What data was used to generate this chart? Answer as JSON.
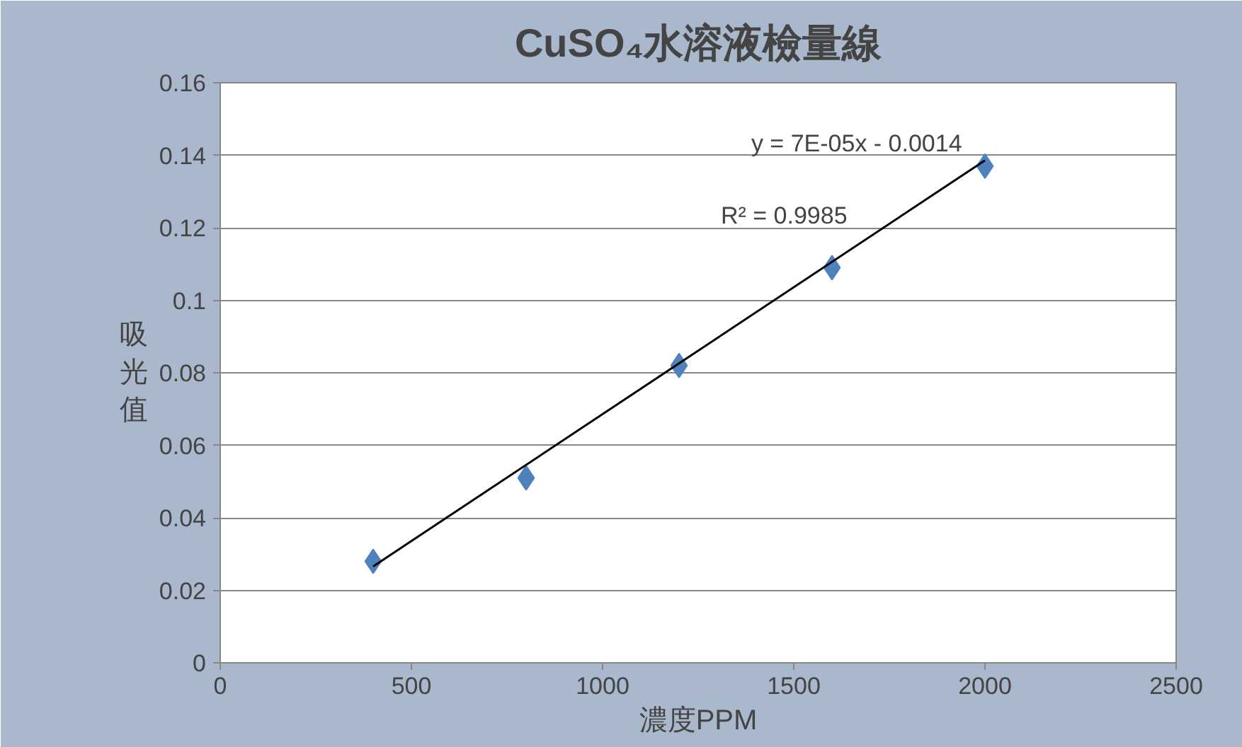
{
  "chart_data": {
    "type": "scatter",
    "title": "CuSO₄水溶液檢量線",
    "xlabel": "濃度PPM",
    "ylabel": "吸光值",
    "x": [
      400,
      800,
      1200,
      1600,
      2000
    ],
    "series": [
      {
        "color": "#4f81bd",
        "values": [
          0.028,
          0.051,
          0.082,
          0.109,
          0.137
        ]
      },
      {
        "type": "line",
        "marker": "none",
        "color": "#000000",
        "x": [
          400,
          2000
        ],
        "values": [
          0.0266,
          0.1386
        ]
      }
    ],
    "annotations": [
      "y = 7E-05x - 0.0014",
      "R² = 0.9985"
    ],
    "xlim": [
      0,
      2500
    ],
    "xticks": [
      0,
      500,
      1000,
      1500,
      2000,
      2500
    ],
    "ylim": [
      0,
      0.16
    ],
    "yticks": [
      0,
      0.02,
      0.04,
      0.06,
      0.08,
      0.1,
      0.12,
      0.14,
      0.16
    ],
    "grid": "y",
    "marker": "diamond",
    "line_style": "solid"
  }
}
